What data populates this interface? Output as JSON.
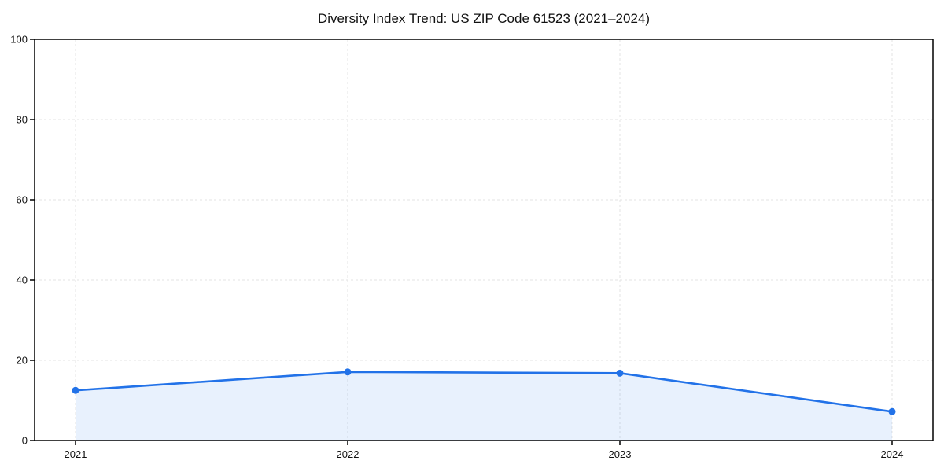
{
  "chart_data": {
    "type": "line",
    "title": "Diversity Index Trend: US ZIP Code 61523 (2021–2024)",
    "x": [
      2021,
      2022,
      2023,
      2024
    ],
    "xticklabels": [
      "2021",
      "2022",
      "2023",
      "2024"
    ],
    "series": [
      {
        "name": "Diversity Index",
        "values": [
          12.5,
          17.1,
          16.8,
          7.2
        ]
      }
    ],
    "xlabel": "",
    "ylabel": "",
    "ylim": [
      0,
      100
    ],
    "yticks": [
      0,
      20,
      40,
      60,
      80,
      100
    ],
    "grid": true,
    "grid_style": "dashed",
    "legend": "none",
    "marker": "circle",
    "area_fill": true,
    "colors": {
      "line": "#2272E8",
      "fill": "#2272E8",
      "fill_opacity": 0.1,
      "grid": "#E3E3E3",
      "axis": "#000000",
      "text": "#111111",
      "background": "#FFFFFF"
    }
  }
}
